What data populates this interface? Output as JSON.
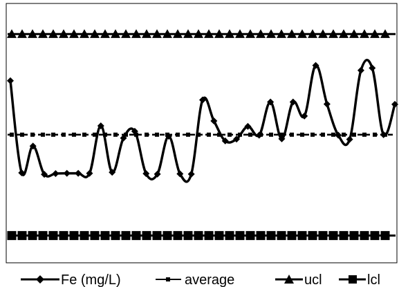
{
  "chart_data": {
    "type": "line",
    "title": "",
    "xlabel": "",
    "ylabel": "",
    "ylim": [
      0,
      100
    ],
    "grid": false,
    "legend_placement": "bottom",
    "line_color": "#000000",
    "series": [
      {
        "name": "Fe (mg/L)",
        "marker": "diamond",
        "style": "solid-smooth",
        "values": [
          70.2,
          34.7,
          45.0,
          34.1,
          34.4,
          34.5,
          34.5,
          34.5,
          52.8,
          34.9,
          48.1,
          50.7,
          34.4,
          34.2,
          48.8,
          34.3,
          34.2,
          62.8,
          54.7,
          47.0,
          47.7,
          52.6,
          49.2,
          62.0,
          47.8,
          62.0,
          56.6,
          76.1,
          61.2,
          49.2,
          47.6,
          74.2,
          75.1,
          49.4,
          61.1
        ]
      },
      {
        "name": "average",
        "marker": "square-small",
        "style": "dashed",
        "values": [
          49.4
        ]
      },
      {
        "name": "ucl",
        "marker": "triangle",
        "style": "solid",
        "values": [
          88.2
        ]
      },
      {
        "name": "lcl",
        "marker": "square",
        "style": "solid",
        "values": [
          10.5
        ]
      }
    ]
  }
}
